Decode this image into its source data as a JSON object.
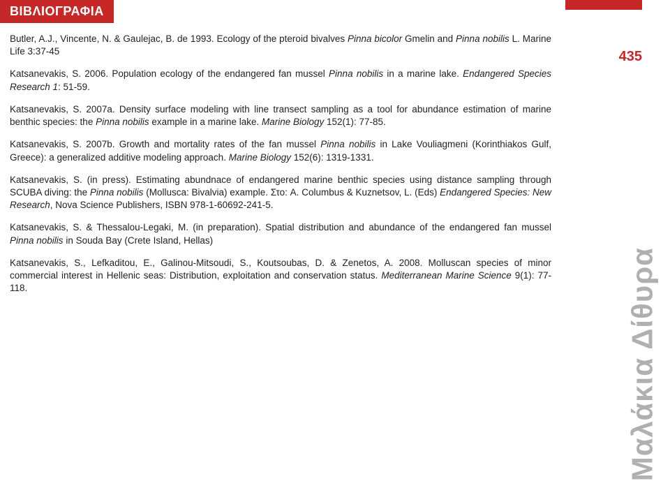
{
  "heading": "ΒΙΒΛΙΟΓΡΑΦΙΑ",
  "page_number": "435",
  "side_label": "Μαλάκια Δίθυρα",
  "accent_color": "#c62828",
  "side_text_color": "#b0b0b0",
  "background_color": "#ffffff",
  "text_color": "#222222",
  "refs": [
    {
      "a": "Butler, A.J., Vincente, N. & Gaulejac, B. de 1993. Ecology of the pteroid bivalves ",
      "i1": "Pinna bicolor",
      "b": " Gmelin and ",
      "i2": "Pinna nobilis",
      "c": " L. Marine Life 3:37-45"
    },
    {
      "a": "Katsanevakis, S. 2006. Population ecology of the endangered fan mussel ",
      "i1": "Pinna nobilis",
      "b": " in a marine lake. ",
      "i2": "Endangered Species Research 1",
      "c": ": 51-59."
    },
    {
      "a": "Katsanevakis, S. 2007a. Density surface modeling with line transect sampling as a tool for abundance estimation of marine benthic species: the ",
      "i1": "Pinna nobilis",
      "b": " example in a marine lake. ",
      "i2": "Marine Biology",
      "c": " 152(1): 77-85."
    },
    {
      "a": "Katsanevakis, S. 2007b. Growth and mortality rates of the fan mussel ",
      "i1": "Pinna nobilis",
      "b": " in Lake Vouliagmeni (Korinthiakos Gulf, Greece): a generalized additive modeling approach. ",
      "i2": "Marine Biology",
      "c": " 152(6): 1319-1331."
    },
    {
      "a": "Katsanevakis, S. (in press). Estimating abundnace of endangered marine benthic species using distance sampling through SCUBA diving: the ",
      "i1": "Pinna nobilis",
      "b": " (Mollusca: Bivalvia) example. Στο: A. Columbus & Kuznetsov, L. (Eds) ",
      "i2": "Endangered Species: New Research",
      "c": ", Nova Science Publishers, ISBN 978-1-60692-241-5."
    },
    {
      "a": "Katsanevakis, S. & Thessalou-Legaki, M. (in preparation). Spatial distribution and abundance of the endangered fan mussel ",
      "i1": "Pinna nobilis",
      "b": " in Souda Bay (Crete Island, Hellas)",
      "i2": "",
      "c": ""
    },
    {
      "a": "Katsanevakis, S., Lefkaditou, E., Galinou-Mitsoudi, S., Koutsoubas, D. & Zenetos, A. 2008. Molluscan species of minor commercial interest in Hellenic seas: Distribution, exploitation and conservation status. ",
      "i1": "Mediterranean Marine Science",
      "b": " 9(1): 77-118.",
      "i2": "",
      "c": ""
    }
  ]
}
